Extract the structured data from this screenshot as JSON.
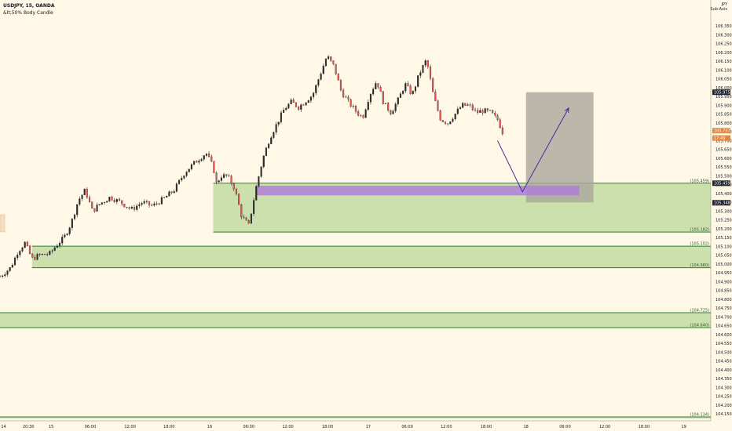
{
  "header": {
    "symbol": "USDJPY, 15, OANDA",
    "indicator": "&lt;50% Body Candle"
  },
  "axis": {
    "currency": "JPY",
    "currency_sub": "Sub-Axis"
  },
  "colors": {
    "background": "#fff8e6",
    "zone_fill": "#b9d89a",
    "zone_border": "#2e7d32",
    "purple": "#b07fd6",
    "projection": "#aaa69c",
    "arrow": "#3f2a9b",
    "bull": "#26a69a",
    "bear": "#ef5350",
    "candle": "#2b2b2b"
  },
  "chart_data": {
    "type": "candlestick",
    "symbol": "USDJPY",
    "timeframe": "15",
    "source": "OANDA",
    "ylim": [
      104.125,
      106.4
    ],
    "y_ticks": [
      106.35,
      106.3,
      106.25,
      106.2,
      106.15,
      106.1,
      106.05,
      106.0,
      105.95,
      105.9,
      105.85,
      105.8,
      105.75,
      105.7,
      105.65,
      105.6,
      105.55,
      105.5,
      105.45,
      105.4,
      105.35,
      105.3,
      105.25,
      105.2,
      105.15,
      105.1,
      105.05,
      105.0,
      104.95,
      104.9,
      104.85,
      104.8,
      104.75,
      104.7,
      104.65,
      104.6,
      104.55,
      104.5,
      104.45,
      104.4,
      104.35,
      104.3,
      104.25,
      104.2,
      104.15
    ],
    "x_ticks": [
      {
        "label": "14",
        "pos": 0.005
      },
      {
        "label": "20:30",
        "pos": 0.04
      },
      {
        "label": "15",
        "pos": 0.072
      },
      {
        "label": "06:00",
        "pos": 0.127
      },
      {
        "label": "12:00",
        "pos": 0.183
      },
      {
        "label": "18:00",
        "pos": 0.238
      },
      {
        "label": "16",
        "pos": 0.295
      },
      {
        "label": "06:00",
        "pos": 0.35
      },
      {
        "label": "12:00",
        "pos": 0.405
      },
      {
        "label": "18:00",
        "pos": 0.461
      },
      {
        "label": "17",
        "pos": 0.518
      },
      {
        "label": "06:00",
        "pos": 0.573
      },
      {
        "label": "12:00",
        "pos": 0.628
      },
      {
        "label": "18:00",
        "pos": 0.684
      },
      {
        "label": "18",
        "pos": 0.74
      },
      {
        "label": "06:00",
        "pos": 0.795
      },
      {
        "label": "12:00",
        "pos": 0.851
      },
      {
        "label": "18:00",
        "pos": 0.906
      },
      {
        "label": "19",
        "pos": 0.962
      }
    ],
    "price_path": [
      [
        0.0,
        104.93
      ],
      [
        0.015,
        104.98
      ],
      [
        0.025,
        105.07
      ],
      [
        0.035,
        105.12
      ],
      [
        0.045,
        105.03
      ],
      [
        0.055,
        105.05
      ],
      [
        0.07,
        105.06
      ],
      [
        0.08,
        105.11
      ],
      [
        0.09,
        105.15
      ],
      [
        0.1,
        105.23
      ],
      [
        0.11,
        105.36
      ],
      [
        0.12,
        105.42
      ],
      [
        0.13,
        105.3
      ],
      [
        0.14,
        105.34
      ],
      [
        0.155,
        105.38
      ],
      [
        0.17,
        105.35
      ],
      [
        0.185,
        105.31
      ],
      [
        0.2,
        105.35
      ],
      [
        0.215,
        105.33
      ],
      [
        0.23,
        105.37
      ],
      [
        0.245,
        105.42
      ],
      [
        0.26,
        105.52
      ],
      [
        0.275,
        105.58
      ],
      [
        0.29,
        105.63
      ],
      [
        0.3,
        105.55
      ],
      [
        0.305,
        105.45
      ],
      [
        0.31,
        105.5
      ],
      [
        0.32,
        105.5
      ],
      [
        0.33,
        105.43
      ],
      [
        0.34,
        105.27
      ],
      [
        0.35,
        105.22
      ],
      [
        0.36,
        105.43
      ],
      [
        0.37,
        105.6
      ],
      [
        0.38,
        105.72
      ],
      [
        0.39,
        105.8
      ],
      [
        0.4,
        105.88
      ],
      [
        0.41,
        105.92
      ],
      [
        0.42,
        105.89
      ],
      [
        0.44,
        105.96
      ],
      [
        0.45,
        106.07
      ],
      [
        0.46,
        106.18
      ],
      [
        0.47,
        106.12
      ],
      [
        0.48,
        105.98
      ],
      [
        0.49,
        105.92
      ],
      [
        0.5,
        105.87
      ],
      [
        0.51,
        105.83
      ],
      [
        0.52,
        105.96
      ],
      [
        0.53,
        106.04
      ],
      [
        0.54,
        105.91
      ],
      [
        0.55,
        105.86
      ],
      [
        0.56,
        105.93
      ],
      [
        0.57,
        106.02
      ],
      [
        0.58,
        105.96
      ],
      [
        0.59,
        106.08
      ],
      [
        0.6,
        106.16
      ],
      [
        0.61,
        105.95
      ],
      [
        0.62,
        105.82
      ],
      [
        0.63,
        105.8
      ],
      [
        0.64,
        105.85
      ],
      [
        0.65,
        105.9
      ],
      [
        0.66,
        105.9
      ],
      [
        0.67,
        105.86
      ],
      [
        0.68,
        105.87
      ],
      [
        0.69,
        105.86
      ],
      [
        0.7,
        105.82
      ],
      [
        0.71,
        105.72
      ]
    ],
    "zones": [
      {
        "top": 105.459,
        "bottom": 105.182,
        "x_start": 0.3,
        "top_label": "(105.459)",
        "bottom_label": "(105.182)"
      },
      {
        "top": 105.102,
        "bottom": 104.98,
        "x_start": 0.045,
        "top_label": "(105.102)",
        "bottom_label": "(104.980)"
      },
      {
        "top": 104.725,
        "bottom": 104.64,
        "x_start": 0.0,
        "top_label": "(104.725)",
        "bottom_label": "(104.640)"
      },
      {
        "top": 104.134,
        "bottom": 104.125,
        "x_start": 0.0,
        "top_label": "(104.134)",
        "bottom_label": ""
      }
    ],
    "purple_zone": {
      "top": 105.445,
      "bottom": 105.39,
      "x_start": 0.36,
      "x_end": 0.815
    },
    "projection_box": {
      "top": 105.975,
      "bottom": 105.35,
      "x_start": 0.74,
      "x_end": 0.835
    },
    "projection_path": [
      [
        0.7,
        105.7
      ],
      [
        0.735,
        105.41
      ],
      [
        0.8,
        105.885
      ]
    ],
    "price_markers": [
      {
        "value": 105.975,
        "label": "105.975",
        "style": "dark"
      },
      {
        "value": 105.757,
        "label": "105.757",
        "style": "orange"
      },
      {
        "value": 105.715,
        "label": "17:49",
        "style": "orange"
      },
      {
        "value": 105.459,
        "label": "105.459",
        "style": "dark"
      },
      {
        "value": 105.348,
        "label": "105.348",
        "style": "dark"
      }
    ]
  }
}
